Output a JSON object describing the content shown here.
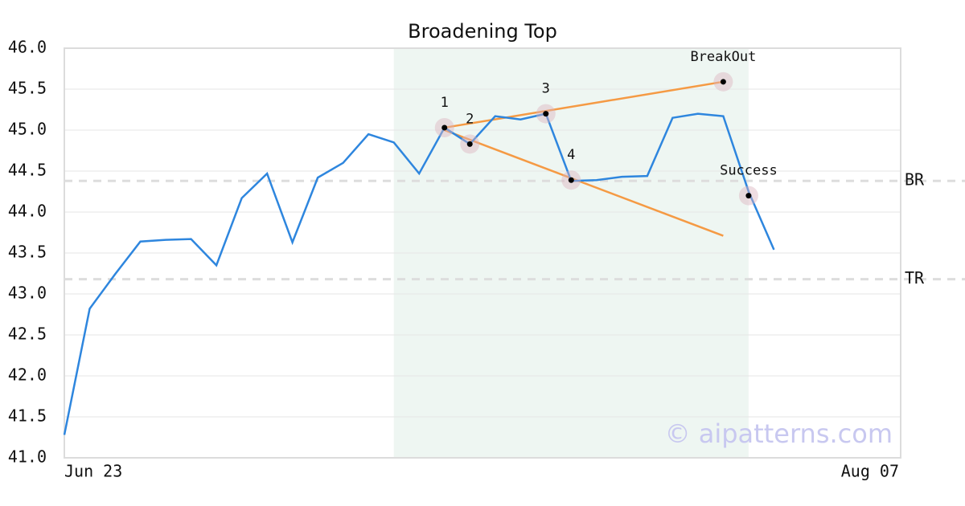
{
  "chart_data": {
    "type": "line",
    "title": "Broadening Top",
    "categories": [
      "Jun 23",
      null,
      null,
      null,
      null,
      null,
      null,
      null,
      null,
      null,
      null,
      null,
      null,
      null,
      null,
      null,
      null,
      null,
      null,
      null,
      null,
      null,
      null,
      null,
      null,
      null,
      null,
      null,
      null,
      null,
      null,
      null,
      null,
      "Aug 07"
    ],
    "values": [
      41.28,
      42.82,
      43.24,
      43.64,
      43.66,
      43.67,
      43.35,
      44.17,
      44.47,
      43.63,
      44.42,
      44.6,
      44.95,
      44.85,
      44.47,
      45.03,
      44.83,
      45.17,
      45.13,
      45.2,
      44.38,
      44.39,
      44.43,
      44.44,
      45.15,
      45.2,
      45.17,
      44.25,
      43.54,
      null,
      null,
      null,
      null,
      null
    ],
    "color": "#2e86de",
    "ylim": [
      41.0,
      46.0
    ],
    "yticks": [
      {
        "value": 41.0,
        "label": "41.0"
      },
      {
        "value": 41.5,
        "label": "41.5"
      },
      {
        "value": 42.0,
        "label": "42.0"
      },
      {
        "value": 42.5,
        "label": "42.5"
      },
      {
        "value": 43.0,
        "label": "43.0"
      },
      {
        "value": 43.5,
        "label": "43.5"
      },
      {
        "value": 44.0,
        "label": "44.0"
      },
      {
        "value": 44.5,
        "label": "44.5"
      },
      {
        "value": 45.0,
        "label": "45.0"
      },
      {
        "value": 45.5,
        "label": "45.5"
      },
      {
        "value": 46.0,
        "label": "46.0"
      }
    ],
    "grid": true,
    "highlight": [
      13,
      27
    ],
    "levels": [
      {
        "label": "BR",
        "value": 44.38
      },
      {
        "label": "TR",
        "value": 43.18
      }
    ],
    "trend_lines": [
      {
        "x": [
          15,
          26
        ],
        "y": [
          45.03,
          45.59
        ],
        "color": "#f59a44"
      },
      {
        "x": [
          15,
          26
        ],
        "y": [
          45.0,
          43.71
        ],
        "color": "#f59a44"
      }
    ],
    "annotations": [
      {
        "label": "1",
        "x": 15,
        "y": 45.03
      },
      {
        "label": "2",
        "x": 16,
        "y": 44.83
      },
      {
        "label": "3",
        "x": 19,
        "y": 45.2
      },
      {
        "label": "4",
        "x": 20,
        "y": 44.39
      },
      {
        "label": "BreakOut",
        "x": 26,
        "y": 45.59
      },
      {
        "label": "Success",
        "x": 27,
        "y": 44.2
      }
    ],
    "watermark": "© aipatterns.com"
  }
}
